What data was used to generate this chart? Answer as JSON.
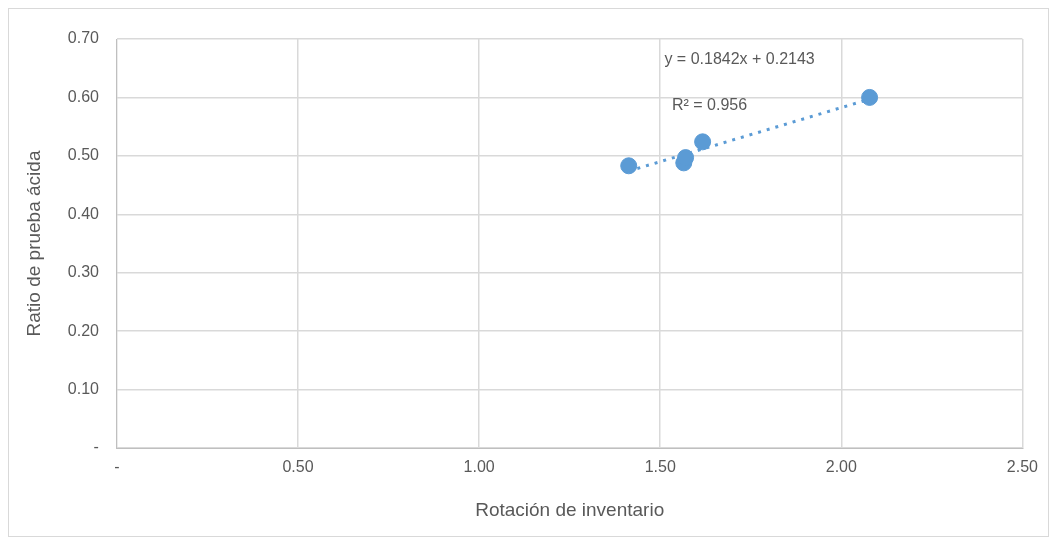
{
  "chart_data": {
    "type": "scatter",
    "xlabel": "Rotación de inventario",
    "ylabel": "Ratio de prueba ácida",
    "xlim": [
      0,
      2.5
    ],
    "xticks": [
      {
        "value": 0,
        "label": "-"
      },
      {
        "value": 0.5,
        "label": "0.50"
      },
      {
        "value": 1,
        "label": "1.00"
      },
      {
        "value": 1.5,
        "label": "1.50"
      },
      {
        "value": 2,
        "label": "2.00"
      },
      {
        "value": 2.5,
        "label": "2.50"
      }
    ],
    "ylim": [
      0,
      0.7
    ],
    "yticks": [
      {
        "value": 0,
        "label": "-"
      },
      {
        "value": 0.1,
        "label": "0.10"
      },
      {
        "value": 0.2,
        "label": "0.20"
      },
      {
        "value": 0.3,
        "label": "0.30"
      },
      {
        "value": 0.4,
        "label": "0.40"
      },
      {
        "value": 0.5,
        "label": "0.50"
      },
      {
        "value": 0.6,
        "label": "0.60"
      },
      {
        "value": 0.7,
        "label": "0.70"
      }
    ],
    "grid": true,
    "legend": false,
    "marker": "circle",
    "series": [
      {
        "type": "scatter",
        "color": "#5b9bd5",
        "x": [
          1.413,
          1.565,
          1.57,
          1.617,
          2.078
        ],
        "values": [
          0.483,
          0.488,
          0.497,
          0.524,
          0.6
        ]
      },
      {
        "type": "line",
        "color": "#5b9bd5",
        "line_style": "dotted",
        "marker": "none",
        "x": [
          1.413,
          2.078
        ],
        "values": [
          0.474,
          0.597
        ]
      }
    ],
    "annotations": [
      "y = 0.1842x + 0.2143",
      "R² = 0.956"
    ]
  }
}
